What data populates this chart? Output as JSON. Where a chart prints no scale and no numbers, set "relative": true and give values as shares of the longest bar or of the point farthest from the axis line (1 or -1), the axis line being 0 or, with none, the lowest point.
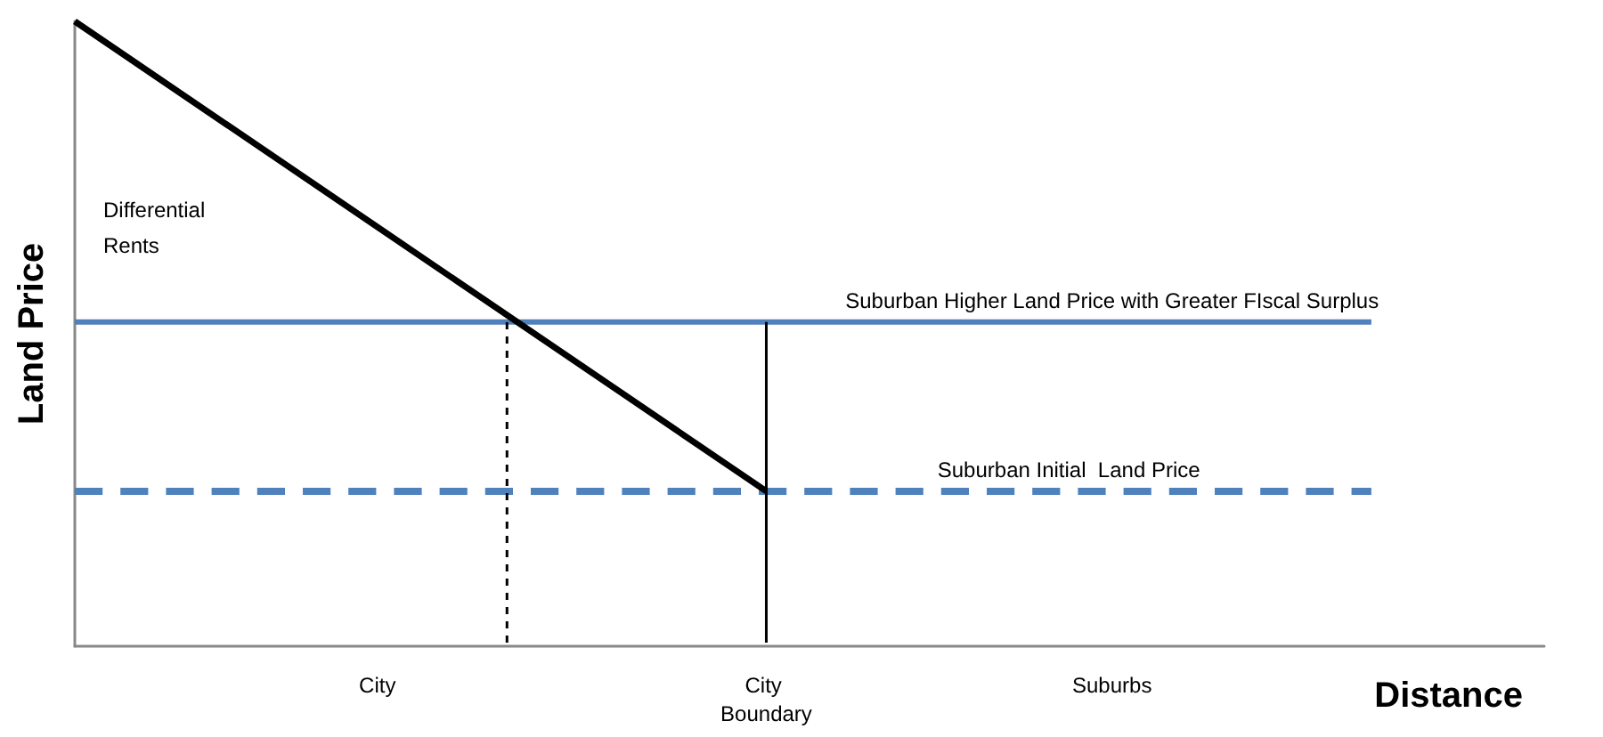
{
  "chart_data": {
    "type": "line",
    "relative": true,
    "xlabel": "Distance",
    "ylabel": "Land Price",
    "annotations": [
      "Differential Rents"
    ],
    "categories": [
      null,
      null,
      null,
      null,
      null,
      null,
      null,
      "City",
      null,
      null,
      null,
      null,
      null,
      null,
      null,
      null,
      "City Boundary",
      null,
      null,
      null,
      null,
      null,
      null,
      null,
      "Suburbs",
      null,
      null,
      null,
      null,
      null,
      null,
      null,
      null,
      null,
      null
    ],
    "series": [
      {
        "color": "#000000",
        "values": [
          1,
          null,
          null,
          null,
          null,
          null,
          null,
          null,
          null,
          null,
          null,
          null,
          null,
          null,
          null,
          null,
          0.248,
          null,
          null,
          null,
          null,
          null,
          null,
          null,
          null,
          null,
          null,
          null,
          null,
          null,
          null,
          null,
          null,
          null,
          null
        ],
        "line_style": "solid"
      },
      {
        "name": "Suburban Higher Land Price with Greater FIscal Surplus",
        "color": "#4f81bd",
        "values": [
          0.519,
          null,
          null,
          null,
          null,
          null,
          null,
          null,
          null,
          null,
          null,
          null,
          null,
          null,
          null,
          null,
          null,
          null,
          null,
          null,
          null,
          null,
          null,
          null,
          0.519,
          null,
          null,
          null,
          null,
          null,
          0.519,
          null,
          null,
          null,
          null
        ],
        "line_style": "solid"
      },
      {
        "name": "Suburban Initial  Land Price",
        "color": "#4f81bd",
        "values": [
          0.248,
          null,
          null,
          null,
          null,
          null,
          null,
          null,
          null,
          null,
          null,
          null,
          null,
          null,
          null,
          null,
          null,
          null,
          null,
          null,
          null,
          null,
          null,
          0.248,
          null,
          null,
          null,
          null,
          null,
          null,
          0.248,
          null,
          null,
          null,
          null
        ],
        "line_style": "dashed"
      }
    ],
    "legend": false,
    "grid": false,
    "marker": "none"
  }
}
